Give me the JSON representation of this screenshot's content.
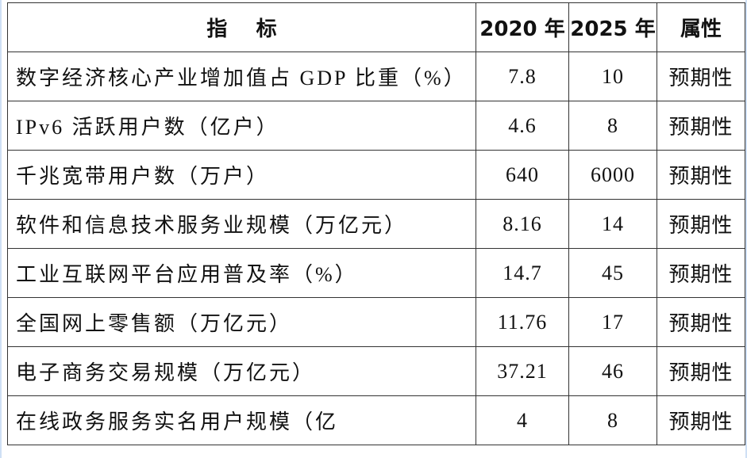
{
  "table": {
    "header": [
      "指    标",
      "2020 年",
      "2025 年",
      "属性"
    ],
    "rows": [
      [
        "数字经济核心产业增加值占 GDP 比重（%）",
        "7.8",
        "10",
        "预期性"
      ],
      [
        "IPv6 活跃用户数（亿户）",
        "4.6",
        "8",
        "预期性"
      ],
      [
        "千兆宽带用户数（万户）",
        "640",
        "6000",
        "预期性"
      ],
      [
        "软件和信息技术服务业规模（万亿元）",
        "8.16",
        "14",
        "预期性"
      ],
      [
        "工业互联网平台应用普及率（%）",
        "14.7",
        "45",
        "预期性"
      ],
      [
        "全国网上零售额（万亿元）",
        "11.76",
        "17",
        "预期性"
      ],
      [
        "电子商务交易规模（万亿元）",
        "37.21",
        "46",
        "预期性"
      ],
      [
        "在线政务服务实名用户规模（亿",
        "4",
        "8",
        "预期性"
      ]
    ]
  }
}
